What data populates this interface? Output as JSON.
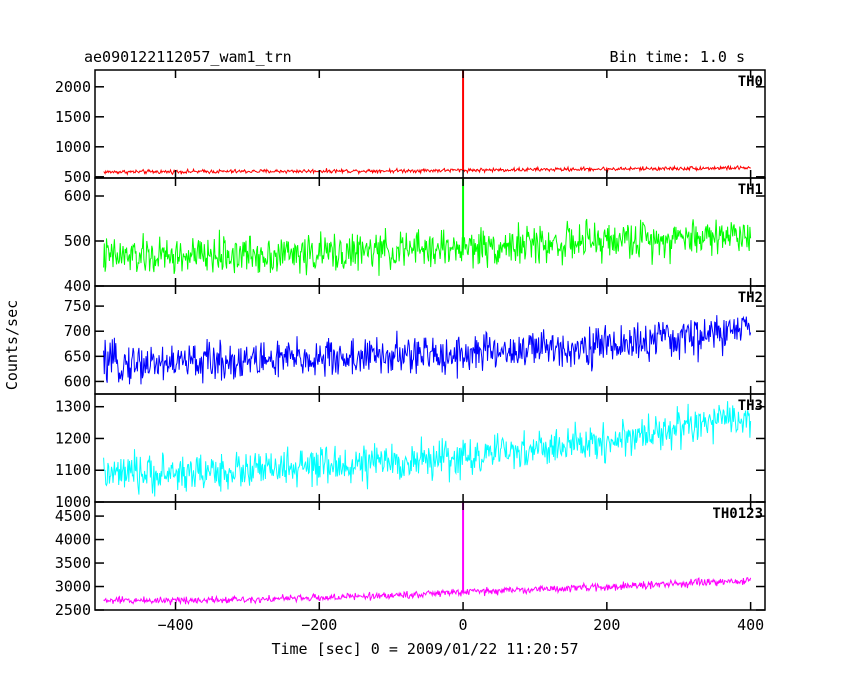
{
  "header": {
    "left_title": "ae090122112057_wam1_trn",
    "right_title": "Bin time: 1.0 s"
  },
  "colors": {
    "TH0": "#ff0000",
    "TH1": "#00ff00",
    "TH2": "#0000ff",
    "TH3": "#00ffff",
    "TH0123": "#ff00ff"
  },
  "chart_data": {
    "type": "line",
    "title": "ae090122112057_wam1_trn",
    "subtitle": "Bin time: 1.0 s",
    "xlabel": "Time [sec] 0 = 2009/01/22 11:20:57",
    "ylabel": "Counts/sec",
    "xlim": [
      -512,
      420
    ],
    "xticks": [
      -400,
      -200,
      0,
      200,
      400
    ],
    "xtick_labels": [
      "−400",
      "−200",
      "0",
      "200",
      "400"
    ],
    "grid": false,
    "panels": [
      {
        "name": "TH0",
        "ylim": [
          480,
          2280
        ],
        "yticks": [
          500,
          1000,
          1500,
          2000
        ],
        "ytick_labels": [
          "500",
          "1000",
          "1500",
          "2000"
        ],
        "x": [
          -500,
          -400,
          -300,
          -200,
          -100,
          0,
          100,
          200,
          300,
          400
        ],
        "y": [
          580,
          585,
          590,
          595,
          600,
          610,
          620,
          630,
          640,
          650
        ],
        "noise": 25,
        "spike": {
          "x": 0,
          "y": 2280
        }
      },
      {
        "name": "TH1",
        "ylim": [
          400,
          640
        ],
        "yticks": [
          400,
          500,
          600
        ],
        "ytick_labels": [
          "400",
          "500",
          "600"
        ],
        "x": [
          -500,
          -400,
          -300,
          -200,
          -100,
          0,
          100,
          200,
          300,
          400
        ],
        "y": [
          465,
          465,
          470,
          472,
          478,
          485,
          492,
          500,
          508,
          515
        ],
        "noise": 32,
        "spike": {
          "x": 0,
          "y": 640
        }
      },
      {
        "name": "TH2",
        "ylim": [
          575,
          790
        ],
        "yticks": [
          600,
          650,
          700,
          750
        ],
        "ytick_labels": [
          "600",
          "650",
          "700",
          "750"
        ],
        "x": [
          -500,
          -400,
          -300,
          -200,
          -100,
          0,
          100,
          200,
          300,
          400
        ],
        "y": [
          635,
          638,
          642,
          646,
          650,
          655,
          664,
          672,
          685,
          705
        ],
        "noise": 30,
        "spike": null
      },
      {
        "name": "TH3",
        "ylim": [
          1000,
          1340
        ],
        "yticks": [
          1000,
          1100,
          1200,
          1300
        ],
        "ytick_labels": [
          "1000",
          "1100",
          "1200",
          "1300"
        ],
        "x": [
          -500,
          -400,
          -300,
          -200,
          -100,
          0,
          100,
          200,
          300,
          400
        ],
        "y": [
          1085,
          1090,
          1100,
          1110,
          1125,
          1140,
          1165,
          1190,
          1235,
          1265
        ],
        "noise": 45,
        "spike": null
      },
      {
        "name": "TH0123",
        "ylim": [
          2500,
          4800
        ],
        "yticks": [
          2500,
          3000,
          3500,
          4000,
          4500
        ],
        "ytick_labels": [
          "2500",
          "3000",
          "3500",
          "4000",
          "4500"
        ],
        "x": [
          -500,
          -400,
          -300,
          -200,
          -100,
          0,
          100,
          200,
          300,
          400
        ],
        "y": [
          2700,
          2710,
          2730,
          2760,
          2810,
          2880,
          2940,
          2990,
          3060,
          3120
        ],
        "noise": 60,
        "spike": {
          "x": 0,
          "y": 4800
        }
      }
    ]
  }
}
